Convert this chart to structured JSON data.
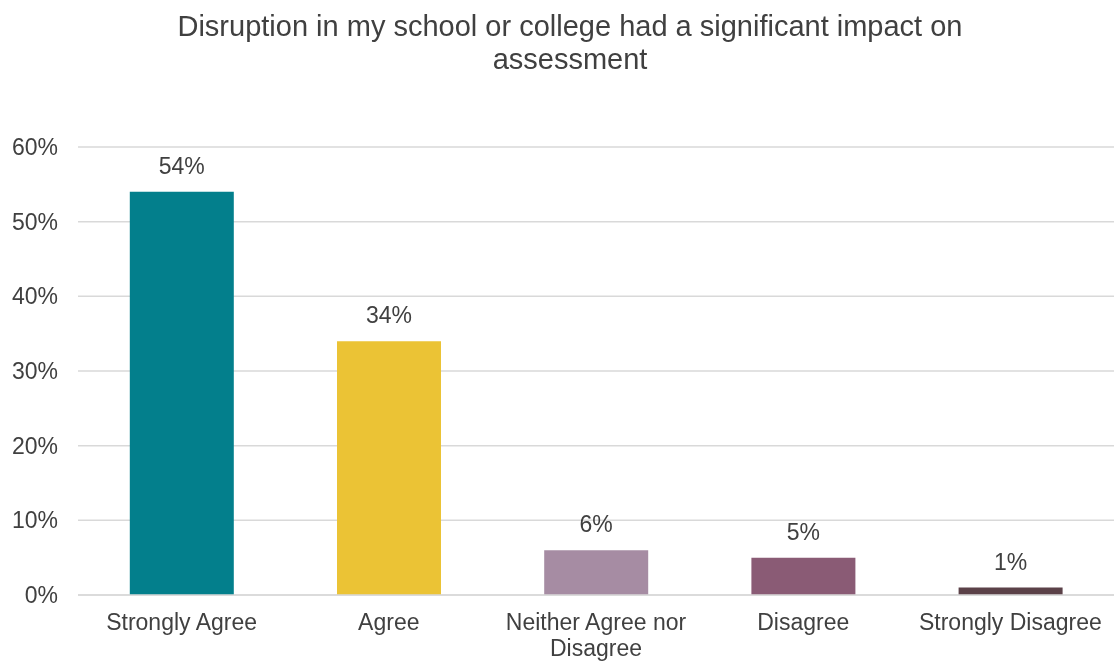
{
  "chart_data": {
    "type": "bar",
    "title": "Disruption in my school or college had a significant impact on assessment",
    "categories": [
      "Strongly Agree",
      "Agree",
      "Neither Agree nor Disagree",
      "Disagree",
      "Strongly Disagree"
    ],
    "values": [
      54,
      34,
      6,
      5,
      1
    ],
    "colors": [
      "#037f8c",
      "#ebc335",
      "#a68ca3",
      "#8a5b75",
      "#5b4148"
    ],
    "value_labels": [
      "54%",
      "34%",
      "6%",
      "5%",
      "1%"
    ],
    "ylim": [
      0,
      60
    ],
    "yticks": [
      {
        "value": 0,
        "label": "0%"
      },
      {
        "value": 10,
        "label": "10%"
      },
      {
        "value": 20,
        "label": "20%"
      },
      {
        "value": 30,
        "label": "30%"
      },
      {
        "value": 40,
        "label": "40%"
      },
      {
        "value": 50,
        "label": "50%"
      },
      {
        "value": 60,
        "label": "60%"
      }
    ],
    "grid": "y"
  }
}
